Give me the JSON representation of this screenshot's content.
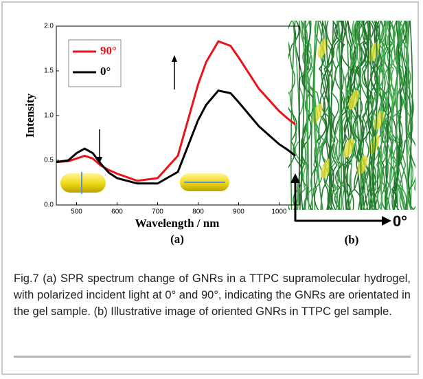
{
  "chart_data": {
    "type": "line",
    "xlabel": "Wavelength / nm",
    "ylabel": "Intensity",
    "panel_label": "(a)",
    "x": [
      450,
      480,
      500,
      520,
      540,
      560,
      580,
      600,
      650,
      700,
      750,
      800,
      820,
      850,
      880,
      900,
      950,
      1000,
      1020,
      1040
    ],
    "series": [
      {
        "name": "90°",
        "color": "#e8131b",
        "values": [
          0.48,
          0.49,
          0.52,
          0.55,
          0.52,
          0.44,
          0.39,
          0.35,
          0.27,
          0.3,
          0.55,
          1.35,
          1.6,
          1.83,
          1.78,
          1.65,
          1.3,
          1.05,
          0.97,
          0.9
        ]
      },
      {
        "name": "0°",
        "color": "#000000",
        "values": [
          0.48,
          0.5,
          0.58,
          0.63,
          0.58,
          0.46,
          0.36,
          0.3,
          0.24,
          0.24,
          0.37,
          0.95,
          1.12,
          1.28,
          1.25,
          1.15,
          0.88,
          0.68,
          0.62,
          0.55
        ]
      }
    ],
    "xlim": [
      450,
      1050
    ],
    "ylim": [
      0,
      2
    ],
    "xticks": [
      500,
      600,
      700,
      800,
      900,
      1000
    ],
    "yticks": [
      {
        "value": 0,
        "label": "0.0"
      },
      {
        "value": 0.5,
        "label": "0.5"
      },
      {
        "value": 1,
        "label": "1.0"
      },
      {
        "value": 1.5,
        "label": "1.5"
      },
      {
        "value": 2,
        "label": "2.0"
      }
    ]
  },
  "figure_b": {
    "panel_label": "(b)",
    "axis_label": "0°"
  },
  "caption": "Fig.7 (a) SPR spectrum change of GNRs in a TTPC supramolecular hydrogel, with polarized incident light at 0° and 90°, indicating the GNRs are orientated in the gel sample. (b) Illustrative image of oriented GNRs in TTPC gel sample."
}
